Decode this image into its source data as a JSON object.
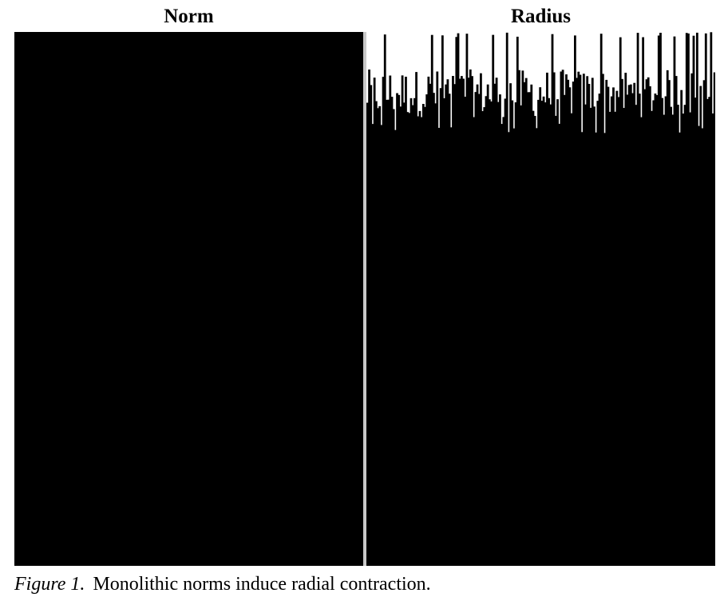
{
  "figure": {
    "panels": [
      {
        "title": "Norm"
      },
      {
        "title": "Radius"
      }
    ],
    "caption": {
      "label": "Figure 1.",
      "text": "Monolithic norms induce radial contraction."
    }
  },
  "colors": {
    "background": "#ffffff",
    "panel_fill": "#000000",
    "divider": "#c8c8c8"
  },
  "chart_data": [
    {
      "type": "bar",
      "title": "Norm",
      "bars": 200,
      "y_fraction": 1.0
    },
    {
      "type": "bar",
      "title": "Radius",
      "bars": 200,
      "y_fraction_range": [
        0.81,
        1.0
      ]
    }
  ]
}
